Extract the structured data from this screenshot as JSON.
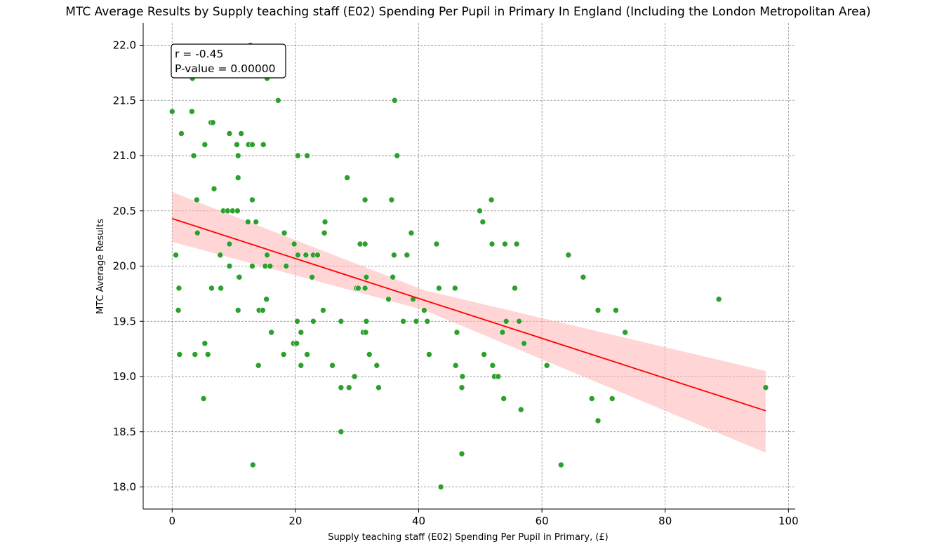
{
  "chart_data": {
    "type": "scatter",
    "title": "MTC Average Results by Supply teaching staff (E02) Spending Per Pupil in Primary In England (Including the London Metropolitan Area)",
    "xlabel": "Supply teaching staff (E02) Spending Per Pupil in Primary, (£)",
    "ylabel": "MTC Average Results",
    "xlim": [
      -4.7,
      101.1
    ],
    "ylim": [
      17.8,
      22.2
    ],
    "x_ticks": [
      0,
      20,
      40,
      60,
      80,
      100
    ],
    "y_ticks": [
      18.0,
      18.5,
      19.0,
      19.5,
      20.0,
      20.5,
      21.0,
      21.5,
      22.0
    ],
    "x_tick_labels": [
      "0",
      "20",
      "40",
      "60",
      "80",
      "100"
    ],
    "y_tick_labels": [
      "18.0",
      "18.5",
      "19.0",
      "19.5",
      "20.0",
      "20.5",
      "21.0",
      "21.5",
      "22.0"
    ],
    "grid": true,
    "point_color": "#2ca02c",
    "line_color": "#ff0000",
    "band_color": "#ffb3b3",
    "annotation": {
      "r_text": "r = -0.45",
      "p_text": "P-value = 0.00000",
      "placement": "top-left"
    },
    "regression": {
      "x": [
        0,
        96.3
      ],
      "y": [
        20.43,
        18.69
      ],
      "ci_lower": [
        20.22,
        18.31
      ],
      "ci_upper": [
        20.67,
        19.05
      ]
    },
    "points": [
      {
        "x": 0,
        "y": 21.4
      },
      {
        "x": 0.6,
        "y": 20.1
      },
      {
        "x": 1.0,
        "y": 19.6
      },
      {
        "x": 1.1,
        "y": 19.8
      },
      {
        "x": 1.2,
        "y": 19.2
      },
      {
        "x": 1.5,
        "y": 21.2
      },
      {
        "x": 3.2,
        "y": 21.4
      },
      {
        "x": 3.3,
        "y": 21.7
      },
      {
        "x": 3.5,
        "y": 21.0
      },
      {
        "x": 3.7,
        "y": 19.2
      },
      {
        "x": 4.0,
        "y": 20.6
      },
      {
        "x": 4.1,
        "y": 20.3
      },
      {
        "x": 5.1,
        "y": 18.8
      },
      {
        "x": 5.3,
        "y": 21.1
      },
      {
        "x": 5.3,
        "y": 19.3
      },
      {
        "x": 5.8,
        "y": 19.2
      },
      {
        "x": 6.3,
        "y": 21.3
      },
      {
        "x": 6.6,
        "y": 21.3
      },
      {
        "x": 6.4,
        "y": 19.8
      },
      {
        "x": 6.8,
        "y": 20.7
      },
      {
        "x": 7.8,
        "y": 20.1
      },
      {
        "x": 7.9,
        "y": 19.8
      },
      {
        "x": 8.3,
        "y": 20.5
      },
      {
        "x": 9.0,
        "y": 20.5
      },
      {
        "x": 9.3,
        "y": 21.2
      },
      {
        "x": 9.3,
        "y": 20.2
      },
      {
        "x": 9.3,
        "y": 20.0
      },
      {
        "x": 9.8,
        "y": 20.5
      },
      {
        "x": 10.5,
        "y": 21.1
      },
      {
        "x": 10.6,
        "y": 20.5
      },
      {
        "x": 10.7,
        "y": 21.0
      },
      {
        "x": 10.7,
        "y": 20.8
      },
      {
        "x": 10.7,
        "y": 19.6
      },
      {
        "x": 10.8,
        "y": 19.9
      },
      {
        "x": 10.9,
        "y": 19.9
      },
      {
        "x": 11.2,
        "y": 21.2
      },
      {
        "x": 12.3,
        "y": 20.4
      },
      {
        "x": 12.4,
        "y": 21.1
      },
      {
        "x": 12.7,
        "y": 22.0
      },
      {
        "x": 13.0,
        "y": 20.6
      },
      {
        "x": 13.0,
        "y": 21.1
      },
      {
        "x": 13.0,
        "y": 20.0
      },
      {
        "x": 13.1,
        "y": 18.2
      },
      {
        "x": 13.6,
        "y": 20.4
      },
      {
        "x": 14.0,
        "y": 19.1
      },
      {
        "x": 14.1,
        "y": 19.6
      },
      {
        "x": 14.7,
        "y": 19.6
      },
      {
        "x": 14.8,
        "y": 21.1
      },
      {
        "x": 15.1,
        "y": 20.0
      },
      {
        "x": 15.3,
        "y": 19.7
      },
      {
        "x": 15.4,
        "y": 21.7
      },
      {
        "x": 15.4,
        "y": 20.1
      },
      {
        "x": 15.9,
        "y": 20.0
      },
      {
        "x": 16.1,
        "y": 19.4
      },
      {
        "x": 17.2,
        "y": 21.5
      },
      {
        "x": 18.1,
        "y": 19.2
      },
      {
        "x": 18.2,
        "y": 20.3
      },
      {
        "x": 18.5,
        "y": 20.0
      },
      {
        "x": 19.7,
        "y": 19.3
      },
      {
        "x": 19.8,
        "y": 20.2
      },
      {
        "x": 20.2,
        "y": 19.3
      },
      {
        "x": 20.3,
        "y": 19.5
      },
      {
        "x": 20.4,
        "y": 20.1
      },
      {
        "x": 20.4,
        "y": 21.0
      },
      {
        "x": 20.9,
        "y": 19.4
      },
      {
        "x": 20.9,
        "y": 19.1
      },
      {
        "x": 21.7,
        "y": 20.1
      },
      {
        "x": 21.9,
        "y": 21.0
      },
      {
        "x": 21.9,
        "y": 19.2
      },
      {
        "x": 22.7,
        "y": 19.9
      },
      {
        "x": 22.9,
        "y": 20.1
      },
      {
        "x": 22.9,
        "y": 19.5
      },
      {
        "x": 23.6,
        "y": 20.1
      },
      {
        "x": 24.5,
        "y": 19.6
      },
      {
        "x": 24.7,
        "y": 20.3
      },
      {
        "x": 24.8,
        "y": 20.4
      },
      {
        "x": 26.0,
        "y": 19.1
      },
      {
        "x": 27.4,
        "y": 19.5
      },
      {
        "x": 27.4,
        "y": 18.9
      },
      {
        "x": 27.4,
        "y": 18.5
      },
      {
        "x": 28.4,
        "y": 20.8
      },
      {
        "x": 28.7,
        "y": 18.9
      },
      {
        "x": 29.6,
        "y": 19.0
      },
      {
        "x": 29.9,
        "y": 19.8
      },
      {
        "x": 30.2,
        "y": 19.8
      },
      {
        "x": 30.5,
        "y": 20.2
      },
      {
        "x": 31.0,
        "y": 19.4
      },
      {
        "x": 31.3,
        "y": 20.6
      },
      {
        "x": 31.3,
        "y": 20.2
      },
      {
        "x": 31.3,
        "y": 19.8
      },
      {
        "x": 31.4,
        "y": 19.4
      },
      {
        "x": 31.5,
        "y": 19.9
      },
      {
        "x": 31.5,
        "y": 19.5
      },
      {
        "x": 32.0,
        "y": 19.2
      },
      {
        "x": 33.2,
        "y": 19.1
      },
      {
        "x": 33.5,
        "y": 18.9
      },
      {
        "x": 35.1,
        "y": 19.7
      },
      {
        "x": 35.6,
        "y": 20.6
      },
      {
        "x": 35.8,
        "y": 19.9
      },
      {
        "x": 36.0,
        "y": 20.1
      },
      {
        "x": 36.1,
        "y": 21.5
      },
      {
        "x": 36.5,
        "y": 21.0
      },
      {
        "x": 37.5,
        "y": 19.5
      },
      {
        "x": 38.1,
        "y": 20.1
      },
      {
        "x": 38.8,
        "y": 20.3
      },
      {
        "x": 39.1,
        "y": 19.7
      },
      {
        "x": 39.6,
        "y": 19.5
      },
      {
        "x": 40.9,
        "y": 19.6
      },
      {
        "x": 41.4,
        "y": 19.5
      },
      {
        "x": 41.7,
        "y": 19.2
      },
      {
        "x": 42.9,
        "y": 20.2
      },
      {
        "x": 43.3,
        "y": 19.8
      },
      {
        "x": 43.6,
        "y": 18.0
      },
      {
        "x": 45.9,
        "y": 19.8
      },
      {
        "x": 46.0,
        "y": 19.1
      },
      {
        "x": 46.2,
        "y": 19.4
      },
      {
        "x": 47.0,
        "y": 18.9
      },
      {
        "x": 47.1,
        "y": 19.0
      },
      {
        "x": 47.0,
        "y": 18.3
      },
      {
        "x": 49.9,
        "y": 20.5
      },
      {
        "x": 50.4,
        "y": 20.4
      },
      {
        "x": 50.6,
        "y": 19.2
      },
      {
        "x": 51.8,
        "y": 20.6
      },
      {
        "x": 51.9,
        "y": 20.2
      },
      {
        "x": 52.0,
        "y": 19.1
      },
      {
        "x": 52.3,
        "y": 19.0
      },
      {
        "x": 52.9,
        "y": 19.0
      },
      {
        "x": 53.6,
        "y": 19.4
      },
      {
        "x": 53.8,
        "y": 18.8
      },
      {
        "x": 54.0,
        "y": 20.2
      },
      {
        "x": 54.2,
        "y": 19.5
      },
      {
        "x": 55.6,
        "y": 19.8
      },
      {
        "x": 55.9,
        "y": 20.2
      },
      {
        "x": 56.3,
        "y": 19.5
      },
      {
        "x": 56.6,
        "y": 18.7
      },
      {
        "x": 57.1,
        "y": 19.3
      },
      {
        "x": 60.8,
        "y": 19.1
      },
      {
        "x": 63.1,
        "y": 18.2
      },
      {
        "x": 64.3,
        "y": 20.1
      },
      {
        "x": 66.7,
        "y": 19.9
      },
      {
        "x": 68.1,
        "y": 18.8
      },
      {
        "x": 69.1,
        "y": 19.6
      },
      {
        "x": 69.1,
        "y": 18.6
      },
      {
        "x": 71.4,
        "y": 18.8
      },
      {
        "x": 72.0,
        "y": 19.6
      },
      {
        "x": 73.5,
        "y": 19.4
      },
      {
        "x": 88.7,
        "y": 19.7
      },
      {
        "x": 96.3,
        "y": 18.9
      }
    ]
  }
}
